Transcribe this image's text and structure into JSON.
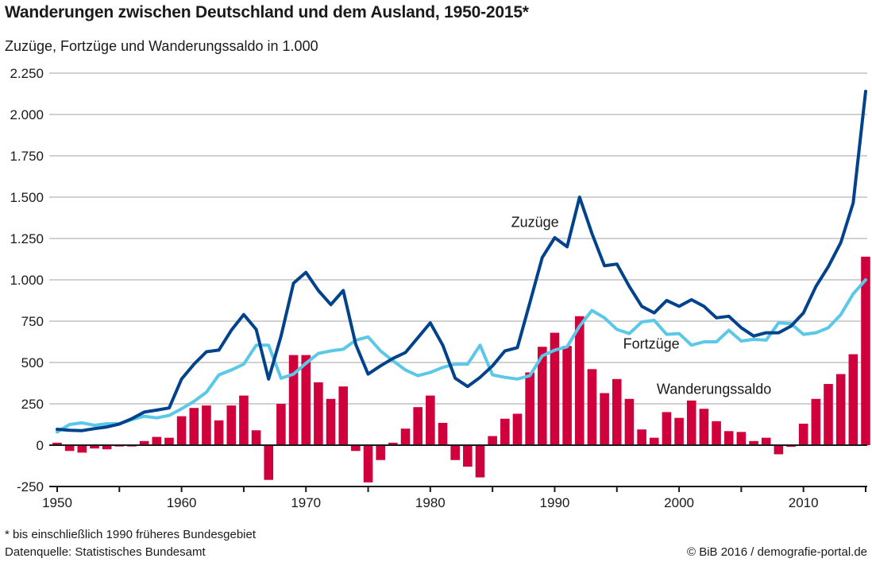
{
  "header": {
    "title": "Wanderungen zwischen Deutschland und dem Ausland, 1950-2015*",
    "subtitle": "Zuzüge, Fortzüge und Wanderungssaldo in 1.000"
  },
  "footer": {
    "note": "* bis einschließlich 1990 früheres Bundesgebiet",
    "source": "Datenquelle: Statistisches Bundesamt",
    "copyright": "© BiB 2016 / demografie-portal.de"
  },
  "chart_data": {
    "type": "bar+line",
    "title": "Wanderungen zwischen Deutschland und dem Ausland, 1950-2015*",
    "subtitle": "Zuzüge, Fortzüge und Wanderungssaldo in 1.000",
    "xlabel": "",
    "ylabel": "",
    "xlim": [
      1950,
      2015
    ],
    "ylim": [
      -250,
      2250
    ],
    "grid": true,
    "yticks": [
      -250,
      0,
      250,
      500,
      750,
      1000,
      1250,
      1500,
      1750,
      2000,
      2250
    ],
    "ytick_labels": [
      "-250",
      "0",
      "250",
      "500",
      "750",
      "1.000",
      "1.250",
      "1.500",
      "1.750",
      "2.000",
      "2.250"
    ],
    "xticks_minor": [
      1950,
      1955,
      1960,
      1965,
      1970,
      1975,
      1980,
      1985,
      1990,
      1995,
      2000,
      2005,
      2010,
      2015
    ],
    "xtick_labels": [
      "1950",
      "1960",
      "1970",
      "1980",
      "1990",
      "2000",
      "2010"
    ],
    "xtick_label_years": [
      1950,
      1960,
      1970,
      1980,
      1990,
      2000,
      2010
    ],
    "x": [
      1950,
      1951,
      1952,
      1953,
      1954,
      1955,
      1956,
      1957,
      1958,
      1959,
      1960,
      1961,
      1962,
      1963,
      1964,
      1965,
      1966,
      1967,
      1968,
      1969,
      1970,
      1971,
      1972,
      1973,
      1974,
      1975,
      1976,
      1977,
      1978,
      1979,
      1980,
      1981,
      1982,
      1983,
      1984,
      1985,
      1986,
      1987,
      1988,
      1989,
      1990,
      1991,
      1992,
      1993,
      1994,
      1995,
      1996,
      1997,
      1998,
      1999,
      2000,
      2001,
      2002,
      2003,
      2004,
      2005,
      2006,
      2007,
      2008,
      2009,
      2010,
      2011,
      2012,
      2013,
      2014,
      2015
    ],
    "series": [
      {
        "name": "Wanderungssaldo",
        "kind": "bar",
        "color": "#d0003c",
        "label": "Wanderungssaldo",
        "label_year": 1998.2,
        "label_value": 310,
        "values": [
          15,
          -35,
          -45,
          -20,
          -25,
          -8,
          -8,
          25,
          50,
          45,
          175,
          225,
          240,
          150,
          240,
          300,
          90,
          -210,
          250,
          545,
          545,
          380,
          280,
          355,
          -35,
          -225,
          -90,
          15,
          100,
          230,
          300,
          135,
          -90,
          -130,
          -195,
          55,
          160,
          190,
          440,
          595,
          680,
          600,
          780,
          460,
          315,
          400,
          280,
          95,
          45,
          200,
          165,
          270,
          220,
          145,
          85,
          80,
          25,
          45,
          -55,
          -10,
          130,
          280,
          370,
          430,
          550,
          1140
        ]
      },
      {
        "name": "Fortzüge",
        "kind": "line",
        "color": "#5ac8e6",
        "label": "Fortzüge",
        "label_year": 1995.5,
        "label_value": 585,
        "values": [
          80,
          125,
          135,
          120,
          130,
          130,
          155,
          175,
          165,
          180,
          220,
          265,
          320,
          425,
          455,
          490,
          605,
          605,
          405,
          430,
          495,
          555,
          570,
          580,
          635,
          655,
          570,
          510,
          455,
          420,
          440,
          470,
          490,
          490,
          605,
          425,
          410,
          400,
          420,
          540,
          575,
          595,
          720,
          815,
          770,
          700,
          675,
          745,
          755,
          670,
          675,
          605,
          625,
          625,
          695,
          630,
          640,
          635,
          740,
          735,
          670,
          680,
          710,
          790,
          915,
          1000
        ]
      },
      {
        "name": "Zuzüge",
        "kind": "line",
        "color": "#00428c",
        "label": "Zuzüge",
        "label_year": 1986.5,
        "label_value": 1320,
        "values": [
          96,
          90,
          88,
          100,
          110,
          128,
          160,
          200,
          212,
          225,
          400,
          490,
          565,
          575,
          695,
          790,
          700,
          400,
          660,
          980,
          1045,
          935,
          850,
          935,
          610,
          430,
          480,
          525,
          560,
          650,
          740,
          605,
          405,
          355,
          410,
          480,
          570,
          590,
          860,
          1135,
          1255,
          1200,
          1500,
          1280,
          1085,
          1095,
          960,
          840,
          800,
          875,
          840,
          880,
          840,
          770,
          780,
          710,
          660,
          680,
          680,
          720,
          800,
          960,
          1080,
          1225,
          1465,
          2140
        ]
      }
    ]
  }
}
